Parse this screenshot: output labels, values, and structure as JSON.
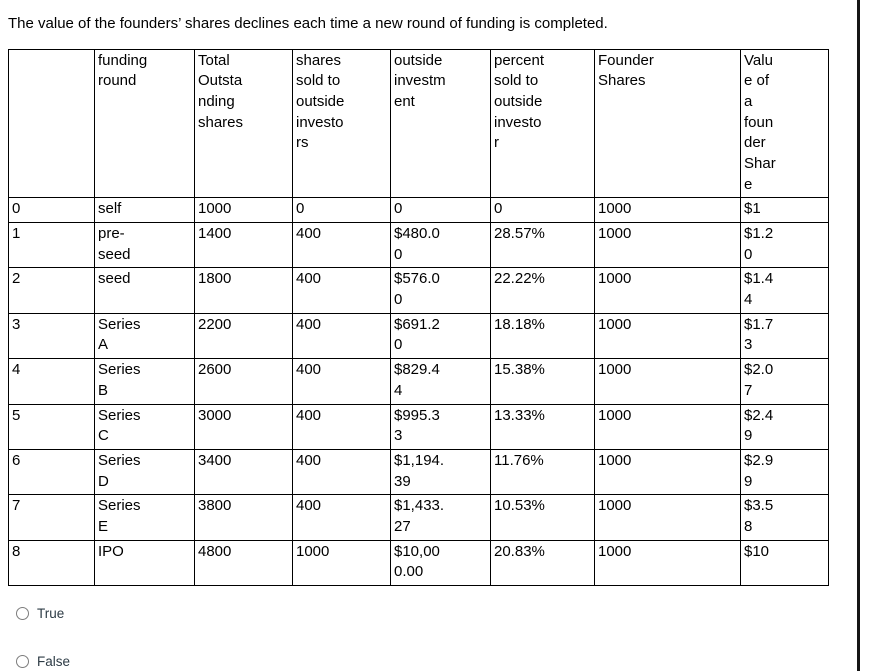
{
  "title": "The value of the founders’ shares declines each time a new round of funding is completed.",
  "table": {
    "headers": [
      "",
      "funding\nround",
      "Total\nOutsta\nnding\nshares",
      "shares\nsold to\noutside\ninvesto\nrs",
      "outside\ninvestm\nent",
      "percent\nsold to\noutside\ninvesto\nr",
      "Founder\nShares",
      "Valu\ne of\na\nfoun\nder\nShar\ne"
    ],
    "rows": [
      [
        "0",
        "self",
        "1000",
        "0",
        "0",
        "0",
        "1000",
        "$1"
      ],
      [
        "1",
        "pre-\nseed",
        "1400",
        "400",
        "$480.0\n0",
        "28.57%",
        "1000",
        "$1.2\n0"
      ],
      [
        "2",
        "seed",
        "1800",
        "400",
        "$576.0\n0",
        "22.22%",
        "1000",
        "$1.4\n4"
      ],
      [
        "3",
        "Series\nA",
        "2200",
        "400",
        "$691.2\n0",
        "18.18%",
        "1000",
        "$1.7\n3"
      ],
      [
        "4",
        "Series\nB",
        "2600",
        "400",
        "$829.4\n4",
        "15.38%",
        "1000",
        "$2.0\n7"
      ],
      [
        "5",
        "Series\nC",
        "3000",
        "400",
        "$995.3\n3",
        "13.33%",
        "1000",
        "$2.4\n9"
      ],
      [
        "6",
        "Series\nD",
        "3400",
        "400",
        "$1,194.\n39",
        "11.76%",
        "1000",
        "$2.9\n9"
      ],
      [
        "7",
        "Series\nE",
        "3800",
        "400",
        "$1,433.\n27",
        "10.53%",
        "1000",
        "$3.5\n8"
      ],
      [
        "8",
        "IPO",
        "4800",
        "1000",
        "$10,00\n0.00",
        "20.83%",
        "1000",
        "$10"
      ]
    ]
  },
  "options": [
    {
      "label": "True",
      "selected": false
    },
    {
      "label": "False",
      "selected": false
    }
  ]
}
